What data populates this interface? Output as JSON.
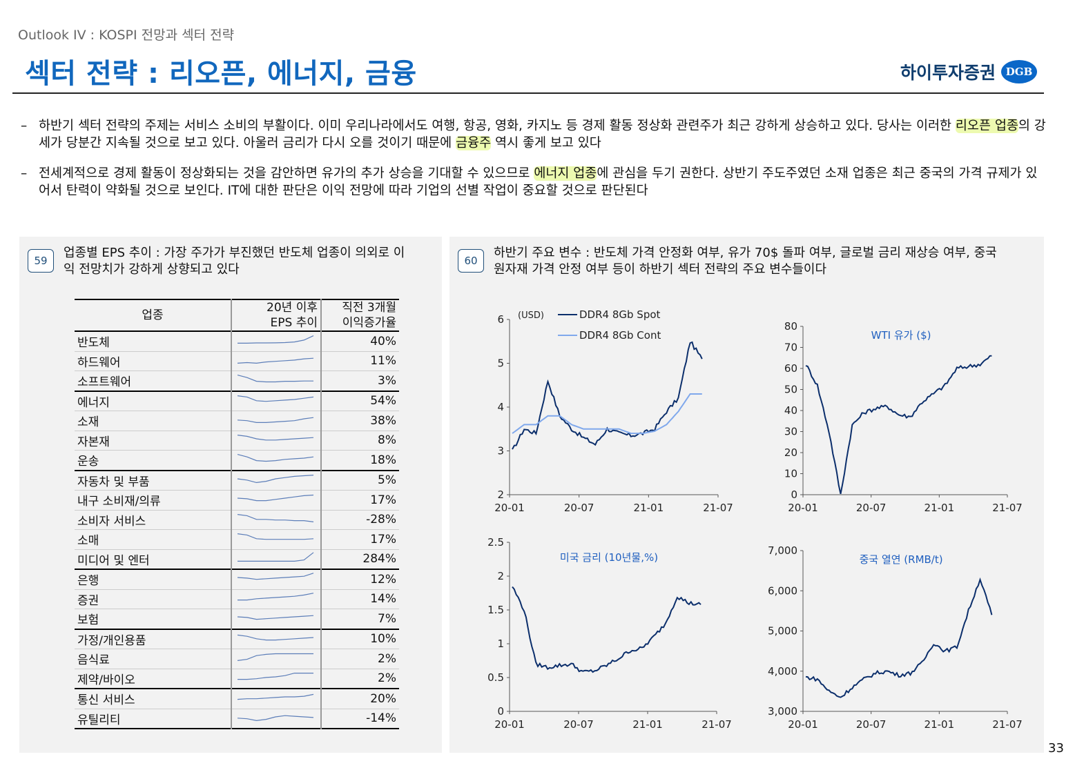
{
  "header": {
    "breadcrumb": "Outlook IV : KOSPI 전망과 섹터 전략",
    "title": "섹터 전략 : 리오픈, 에너지, 금융",
    "logo_text": "하이투자증권",
    "logo_badge": "DGB"
  },
  "bullets": [
    {
      "dash": "–",
      "parts": [
        {
          "t": "하반기 섹터 전략의 주제는 서비스 소비의 부활이다. 이미 우리나라에서도 여행, 항공, 영화, 카지노 등 경제 활동 정상화 관련주가 최근 강하게 상승하고 있다. 당사는 이러한 "
        },
        {
          "t": "리오픈 업종",
          "hl": true
        },
        {
          "t": "의 강세가 당분간 지속될 것으로 보고 있다. 아울러 금리가 다시 오를 것이기 때문에 "
        },
        {
          "t": "금융주",
          "hl": true
        },
        {
          "t": " 역시 좋게 보고 있다"
        }
      ]
    },
    {
      "dash": "–",
      "parts": [
        {
          "t": "전세계적으로 경제 활동이 정상화되는 것을 감안하면 유가의 추가 상승을 기대할 수 있으므로 "
        },
        {
          "t": "에너지 업종",
          "hl": true
        },
        {
          "t": "에 관심을 두기 권한다. 상반기 주도주였던 소재 업종은 최근 중국의 가격 규제가 있어서 탄력이 약화될 것으로 보인다. IT에 대한 판단은 이익 전망에 따라 기업의 선별 작업이 중요할 것으로 판단된다"
        }
      ]
    }
  ],
  "figure59": {
    "num": "59",
    "caption_line1": "업종별 EPS 추이 : 가장 주가가 부진했던 반도체 업종이 의외로 이",
    "caption_line2": "익 전망치가 강하게 상향되고 있다",
    "col1": "업종",
    "col2_l1": "20년 이후",
    "col2_l2": "EPS 추이",
    "col3_l1": "직전 3개월",
    "col3_l2": "이익증가율",
    "rows": [
      {
        "name": "반도체",
        "value": "40%",
        "spark": [
          0.2,
          0.2,
          0.22,
          0.22,
          0.23,
          0.25,
          0.3,
          0.45,
          0.8
        ],
        "group_start": true
      },
      {
        "name": "하드웨어",
        "value": "11%",
        "spark": [
          0.2,
          0.25,
          0.2,
          0.3,
          0.35,
          0.4,
          0.45,
          0.55,
          0.6
        ]
      },
      {
        "name": "소프트웨어",
        "value": "3%",
        "spark": [
          0.8,
          0.6,
          0.3,
          0.25,
          0.25,
          0.3,
          0.3,
          0.32,
          0.32
        ]
      },
      {
        "name": "에너지",
        "value": "54%",
        "spark": [
          0.8,
          0.7,
          0.4,
          0.35,
          0.4,
          0.45,
          0.5,
          0.6,
          0.7
        ],
        "group_start": true
      },
      {
        "name": "소재",
        "value": "38%",
        "spark": [
          0.4,
          0.35,
          0.2,
          0.2,
          0.25,
          0.3,
          0.35,
          0.5,
          0.6
        ]
      },
      {
        "name": "자본재",
        "value": "8%",
        "spark": [
          0.8,
          0.7,
          0.5,
          0.4,
          0.4,
          0.45,
          0.5,
          0.55,
          0.6
        ]
      },
      {
        "name": "운송",
        "value": "18%",
        "spark": [
          0.8,
          0.6,
          0.3,
          0.25,
          0.3,
          0.4,
          0.45,
          0.5,
          0.6
        ]
      },
      {
        "name": "자동차 및 부품",
        "value": "5%",
        "spark": [
          0.5,
          0.4,
          0.2,
          0.3,
          0.5,
          0.6,
          0.7,
          0.75,
          0.8
        ],
        "group_start": true
      },
      {
        "name": "내구 소비재/의류",
        "value": "17%",
        "spark": [
          0.5,
          0.45,
          0.3,
          0.3,
          0.4,
          0.5,
          0.6,
          0.7,
          0.75
        ]
      },
      {
        "name": "소비자 서비스",
        "value": "-28%",
        "spark": [
          0.8,
          0.7,
          0.4,
          0.4,
          0.35,
          0.35,
          0.3,
          0.3,
          0.2
        ]
      },
      {
        "name": "소매",
        "value": "17%",
        "spark": [
          0.8,
          0.7,
          0.4,
          0.35,
          0.35,
          0.35,
          0.35,
          0.35,
          0.4
        ]
      },
      {
        "name": "미디어 및 엔터",
        "value": "284%",
        "spark": [
          0.2,
          0.2,
          0.2,
          0.2,
          0.2,
          0.2,
          0.2,
          0.3,
          0.9
        ]
      },
      {
        "name": "은행",
        "value": "12%",
        "spark": [
          0.5,
          0.45,
          0.35,
          0.4,
          0.45,
          0.5,
          0.55,
          0.6,
          0.85
        ],
        "group_start": true
      },
      {
        "name": "증권",
        "value": "14%",
        "spark": [
          0.3,
          0.3,
          0.4,
          0.45,
          0.5,
          0.55,
          0.6,
          0.7,
          0.85
        ]
      },
      {
        "name": "보험",
        "value": "7%",
        "spark": [
          0.5,
          0.45,
          0.3,
          0.35,
          0.4,
          0.45,
          0.5,
          0.55,
          0.6
        ]
      },
      {
        "name": "가정/개인용품",
        "value": "10%",
        "spark": [
          0.7,
          0.6,
          0.4,
          0.3,
          0.3,
          0.35,
          0.4,
          0.45,
          0.5
        ],
        "group_start": true
      },
      {
        "name": "음식료",
        "value": "2%",
        "spark": [
          0.2,
          0.3,
          0.6,
          0.7,
          0.75,
          0.75,
          0.75,
          0.75,
          0.75
        ]
      },
      {
        "name": "제약/바이오",
        "value": "2%",
        "spark": [
          0.3,
          0.3,
          0.35,
          0.45,
          0.5,
          0.6,
          0.8,
          0.8,
          0.8
        ]
      },
      {
        "name": "통신 서비스",
        "value": "20%",
        "spark": [
          0.3,
          0.35,
          0.35,
          0.4,
          0.45,
          0.5,
          0.5,
          0.55,
          0.7
        ],
        "group_start": true
      },
      {
        "name": "유틸리티",
        "value": "-14%",
        "spark": [
          0.4,
          0.35,
          0.2,
          0.3,
          0.5,
          0.6,
          0.55,
          0.5,
          0.45
        ],
        "last": true
      }
    ]
  },
  "figure60": {
    "num": "60",
    "caption_line1": "하반기 주요 변수 : 반도체 가격 안정화 여부, 유가 70$ 돌파 여부, 글로벌 금리 재상승 여부, 중국",
    "caption_line2": "원자재 가격 안정 여부 등이 하반기 섹터 전략의 주요 변수들이다"
  },
  "chart_data": [
    {
      "type": "line",
      "unit_label": "(USD)",
      "x": [
        "20-01",
        "20-02",
        "20-03",
        "20-04",
        "20-05",
        "20-06",
        "20-07",
        "20-08",
        "20-09",
        "20-10",
        "20-11",
        "20-12",
        "21-01",
        "21-02",
        "21-03",
        "21-04",
        "21-05"
      ],
      "series": [
        {
          "name": "DDR4 8Gb Spot",
          "color": "#0b2e6b",
          "values": [
            3.0,
            3.5,
            3.4,
            4.6,
            3.8,
            3.5,
            3.3,
            3.15,
            3.5,
            3.4,
            3.35,
            3.4,
            3.5,
            3.9,
            4.2,
            5.5,
            5.1
          ]
        },
        {
          "name": "DDR4 8Gb Cont",
          "color": "#7fa8ec",
          "values": [
            3.4,
            3.6,
            3.6,
            3.8,
            3.8,
            3.6,
            3.5,
            3.5,
            3.5,
            3.5,
            3.4,
            3.4,
            3.45,
            3.6,
            3.9,
            4.3,
            4.3
          ]
        }
      ],
      "xticks": [
        "20-01",
        "20-07",
        "21-01",
        "21-07"
      ],
      "yticks": [
        "2",
        "3",
        "4",
        "5",
        "6"
      ],
      "ylim": [
        2,
        6
      ]
    },
    {
      "type": "line",
      "title": "WTI 유가 ($)",
      "x": [
        "20-01",
        "20-02",
        "20-03",
        "20-04",
        "20-05",
        "20-06",
        "20-07",
        "20-08",
        "20-09",
        "20-10",
        "20-11",
        "20-12",
        "21-01",
        "21-02",
        "21-03",
        "21-04",
        "21-05"
      ],
      "series": [
        {
          "color": "#0b2e6b",
          "values": [
            62,
            52,
            30,
            0,
            33,
            39,
            41,
            42,
            38,
            37,
            44,
            48,
            52,
            60,
            61,
            62,
            66
          ]
        }
      ],
      "xticks": [
        "20-01",
        "20-07",
        "21-01",
        "21-07"
      ],
      "yticks": [
        "0",
        "10",
        "20",
        "30",
        "40",
        "50",
        "60",
        "70",
        "80"
      ],
      "ylim": [
        0,
        80
      ]
    },
    {
      "type": "line",
      "title": "미국 금리 (10년물,%)",
      "x": [
        "20-01",
        "20-02",
        "20-03",
        "20-04",
        "20-05",
        "20-06",
        "20-07",
        "20-08",
        "20-09",
        "20-10",
        "20-11",
        "20-12",
        "21-01",
        "21-02",
        "21-03",
        "21-04",
        "21-05"
      ],
      "series": [
        {
          "color": "#0b2e6b",
          "values": [
            1.85,
            1.5,
            0.7,
            0.65,
            0.68,
            0.7,
            0.58,
            0.6,
            0.68,
            0.78,
            0.9,
            0.93,
            1.1,
            1.3,
            1.7,
            1.6,
            1.58
          ]
        }
      ],
      "xticks": [
        "20-01",
        "20-07",
        "21-01",
        "21-07"
      ],
      "yticks": [
        "0",
        "0.5",
        "1",
        "1.5",
        "2",
        "2.5"
      ],
      "ylim": [
        0,
        2.5
      ]
    },
    {
      "type": "line",
      "title": "중국 열연 (RMB/t)",
      "x": [
        "20-01",
        "20-02",
        "20-03",
        "20-04",
        "20-05",
        "20-06",
        "20-07",
        "20-08",
        "20-09",
        "20-10",
        "20-11",
        "20-12",
        "21-01",
        "21-02",
        "21-03",
        "21-04",
        "21-05"
      ],
      "series": [
        {
          "color": "#0b2e6b",
          "values": [
            3850,
            3800,
            3500,
            3350,
            3600,
            3800,
            3950,
            4000,
            3900,
            3950,
            4200,
            4700,
            4500,
            4600,
            5500,
            6300,
            5400
          ]
        }
      ],
      "xticks": [
        "20-01",
        "20-07",
        "21-01",
        "21-07"
      ],
      "yticks": [
        "3,000",
        "4,000",
        "5,000",
        "6,000",
        "7,000"
      ],
      "ylim": [
        3000,
        7000
      ]
    }
  ],
  "page_number": "33"
}
